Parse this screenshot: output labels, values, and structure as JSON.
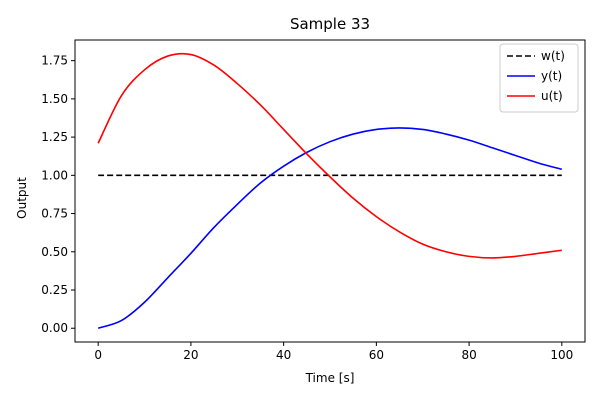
{
  "chart_data": {
    "type": "line",
    "title": "Sample 33",
    "xlabel": "Time [s]",
    "ylabel": "Output",
    "xlim": [
      -5,
      105
    ],
    "ylim": [
      -0.09,
      1.885
    ],
    "xticks": [
      0,
      20,
      40,
      60,
      80,
      100
    ],
    "xtick_labels": [
      "0",
      "20",
      "40",
      "60",
      "80",
      "100"
    ],
    "yticks": [
      0.0,
      0.25,
      0.5,
      0.75,
      1.0,
      1.25,
      1.5,
      1.75
    ],
    "ytick_labels": [
      "0.00",
      "0.25",
      "0.50",
      "0.75",
      "1.00",
      "1.25",
      "1.50",
      "1.75"
    ],
    "grid": false,
    "legend_position": "top-right",
    "x": [
      0,
      5,
      10,
      15,
      20,
      25,
      30,
      35,
      40,
      45,
      50,
      55,
      60,
      65,
      70,
      75,
      80,
      85,
      90,
      95,
      100
    ],
    "series": [
      {
        "name": "w(t)",
        "color": "#000000",
        "dash": "dashed",
        "values": [
          1.0,
          1.0,
          1.0,
          1.0,
          1.0,
          1.0,
          1.0,
          1.0,
          1.0,
          1.0,
          1.0,
          1.0,
          1.0,
          1.0,
          1.0,
          1.0,
          1.0,
          1.0,
          1.0,
          1.0,
          1.0
        ]
      },
      {
        "name": "y(t)",
        "color": "#0000ff",
        "dash": "solid",
        "values": [
          0.0,
          0.05,
          0.17,
          0.33,
          0.49,
          0.66,
          0.81,
          0.95,
          1.06,
          1.15,
          1.22,
          1.27,
          1.3,
          1.31,
          1.3,
          1.27,
          1.23,
          1.18,
          1.13,
          1.08,
          1.04
        ]
      },
      {
        "name": "u(t)",
        "color": "#ff0000",
        "dash": "solid",
        "values": [
          1.21,
          1.52,
          1.69,
          1.78,
          1.79,
          1.72,
          1.6,
          1.46,
          1.3,
          1.14,
          0.99,
          0.85,
          0.73,
          0.63,
          0.55,
          0.5,
          0.47,
          0.46,
          0.47,
          0.49,
          0.51
        ]
      }
    ]
  }
}
